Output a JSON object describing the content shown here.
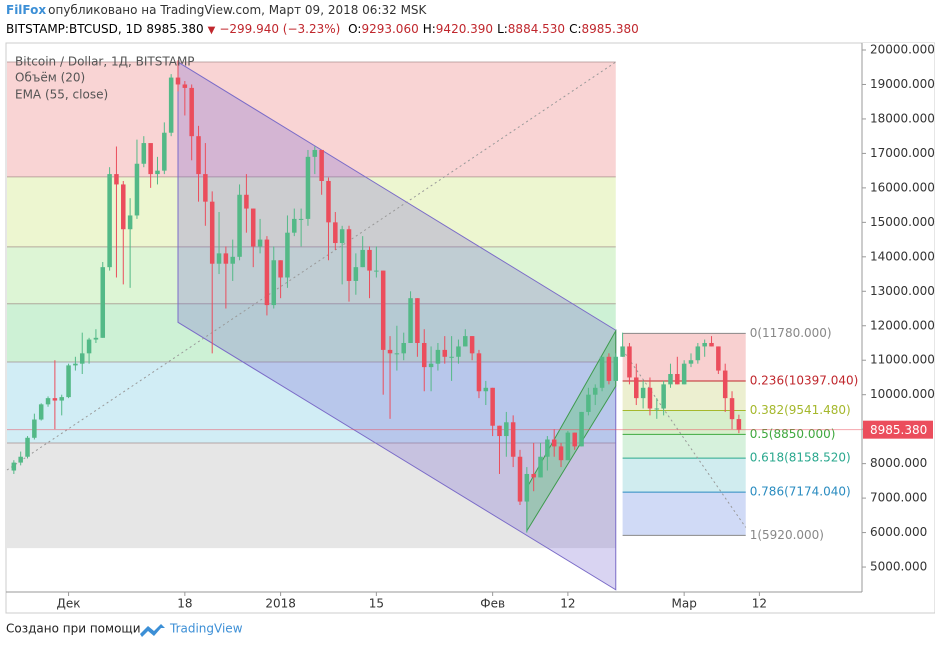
{
  "header": {
    "author": "FilFox",
    "published": "опубликовано на TradingView.com, Март 09, 2018 06:32 MSK",
    "symbol": "BITSTAMP:BTCUSD, 1D",
    "price": "8985.380",
    "change": "−299.940 (−3.23%)",
    "ohlc": [
      {
        "label": "O:",
        "value": "9293.060"
      },
      {
        "label": "H:",
        "value": "9420.390"
      },
      {
        "label": "L:",
        "value": "8884.530"
      },
      {
        "label": "C:",
        "value": "8985.380"
      }
    ]
  },
  "footer": {
    "text": "Создано при помощи",
    "brand": "TradingView"
  },
  "chart_data": {
    "type": "candlestick",
    "title": "Bitcoin / Dollar, 1Д, BITSTAMP",
    "indicators": [
      "Объём (20)",
      "EMA (55, close)"
    ],
    "up_color": "#53b987",
    "down_color": "#eb4d5c",
    "x": [
      "2017-11-23",
      "2017-11-24",
      "2017-11-25",
      "2017-11-26",
      "2017-11-27",
      "2017-11-28",
      "2017-11-29",
      "2017-11-30",
      "2017-12-01",
      "2017-12-02",
      "2017-12-03",
      "2017-12-04",
      "2017-12-05",
      "2017-12-06",
      "2017-12-07",
      "2017-12-08",
      "2017-12-09",
      "2017-12-10",
      "2017-12-11",
      "2017-12-12",
      "2017-12-13",
      "2017-12-14",
      "2017-12-15",
      "2017-12-16",
      "2017-12-17",
      "2017-12-18",
      "2017-12-19",
      "2017-12-20",
      "2017-12-21",
      "2017-12-22",
      "2017-12-23",
      "2017-12-24",
      "2017-12-25",
      "2017-12-26",
      "2017-12-27",
      "2017-12-28",
      "2017-12-29",
      "2017-12-30",
      "2017-12-31",
      "2018-01-01",
      "2018-01-02",
      "2018-01-03",
      "2018-01-04",
      "2018-01-05",
      "2018-01-06",
      "2018-01-07",
      "2018-01-08",
      "2018-01-09",
      "2018-01-10",
      "2018-01-11",
      "2018-01-12",
      "2018-01-13",
      "2018-01-14",
      "2018-01-15",
      "2018-01-16",
      "2018-01-17",
      "2018-01-18",
      "2018-01-19",
      "2018-01-20",
      "2018-01-21",
      "2018-01-22",
      "2018-01-23",
      "2018-01-24",
      "2018-01-25",
      "2018-01-26",
      "2018-01-27",
      "2018-01-28",
      "2018-01-29",
      "2018-01-30",
      "2018-01-31",
      "2018-02-01",
      "2018-02-02",
      "2018-02-03",
      "2018-02-04",
      "2018-02-05",
      "2018-02-06",
      "2018-02-07",
      "2018-02-08",
      "2018-02-09",
      "2018-02-10",
      "2018-02-11",
      "2018-02-12",
      "2018-02-13",
      "2018-02-14",
      "2018-02-15",
      "2018-02-16",
      "2018-02-17",
      "2018-02-18",
      "2018-02-19",
      "2018-02-20",
      "2018-02-21",
      "2018-02-22",
      "2018-02-23",
      "2018-02-24",
      "2018-02-25",
      "2018-02-26",
      "2018-02-27",
      "2018-02-28",
      "2018-03-01",
      "2018-03-02",
      "2018-03-03",
      "2018-03-04",
      "2018-03-05",
      "2018-03-06",
      "2018-03-07",
      "2018-03-08",
      "2018-03-09"
    ],
    "open": [
      7800,
      8030,
      8200,
      8750,
      9280,
      9720,
      9900,
      9830,
      9930,
      10850,
      10900,
      11200,
      11600,
      11650,
      13700,
      16400,
      16100,
      14800,
      15200,
      16700,
      17300,
      16400,
      16500,
      17600,
      19200,
      19000,
      18900,
      17500,
      16400,
      15600,
      13800,
      14100,
      13800,
      14000,
      15800,
      15400,
      14300,
      14500,
      12600,
      13900,
      13400,
      14700,
      15100,
      15100,
      16900,
      17100,
      16200,
      15000,
      14400,
      14800,
      13300,
      13700,
      14200,
      13600,
      13600,
      11300,
      11200,
      11200,
      11500,
      12800,
      11500,
      10800,
      10900,
      11300,
      11100,
      11100,
      11400,
      11700,
      11200,
      10100,
      10200,
      9100,
      8800,
      9200,
      8200,
      6900,
      7700,
      7600,
      8200,
      8700,
      8500,
      8100,
      8900,
      8500,
      9500,
      10000,
      10200,
      11100,
      10400,
      11100,
      11400,
      10500,
      9900,
      10200,
      9600,
      9600,
      10300,
      10600,
      10300,
      10900,
      11000,
      11400,
      11500,
      11400,
      10700,
      9900,
      9293.06
    ],
    "high": [
      8100,
      8350,
      8800,
      9450,
      9750,
      9950,
      11000,
      10000,
      10900,
      11100,
      11800,
      11650,
      11900,
      13850,
      16600,
      17200,
      16200,
      15700,
      17400,
      17500,
      17200,
      16900,
      17900,
      19300,
      19700,
      19100,
      19000,
      17800,
      17300,
      15900,
      15300,
      14300,
      14500,
      16100,
      16400,
      15400,
      15100,
      14600,
      14300,
      13900,
      15200,
      15400,
      15400,
      17100,
      17200,
      17100,
      16300,
      15300,
      14900,
      14900,
      14100,
      14600,
      14300,
      14300,
      13600,
      11700,
      12000,
      11800,
      13000,
      12800,
      11900,
      11400,
      11500,
      11700,
      11700,
      11600,
      11900,
      11700,
      11300,
      10400,
      10200,
      9100,
      9500,
      9400,
      8400,
      7900,
      8600,
      8600,
      8800,
      9000,
      8600,
      8950,
      8900,
      9500,
      10200,
      10300,
      11100,
      11200,
      11200,
      11800,
      11500,
      10900,
      10400,
      10500,
      9900,
      10400,
      10900,
      11100,
      11000,
      11200,
      11500,
      11600,
      11700,
      11400,
      10900,
      10100,
      9420.39
    ],
    "low": [
      7700,
      7950,
      8150,
      8700,
      9250,
      9650,
      9000,
      9400,
      9900,
      10700,
      10600,
      10900,
      11500,
      11650,
      13600,
      13400,
      13200,
      13100,
      15100,
      16600,
      16000,
      16100,
      16400,
      17500,
      18800,
      18100,
      16800,
      15600,
      14900,
      11200,
      13500,
      12500,
      13300,
      13900,
      14700,
      13700,
      14100,
      12300,
      12500,
      12800,
      13100,
      14600,
      14300,
      14900,
      16400,
      15800,
      13900,
      14200,
      13200,
      12700,
      12900,
      13700,
      12800,
      13400,
      10000,
      9300,
      10700,
      11000,
      11500,
      11100,
      10100,
      10100,
      10700,
      10900,
      10400,
      10900,
      11400,
      11000,
      9900,
      9700,
      8800,
      7700,
      8200,
      7900,
      6800,
      6000,
      7200,
      7600,
      7800,
      8200,
      7900,
      8100,
      8400,
      8500,
      9400,
      9700,
      10100,
      10300,
      10400,
      11100,
      10300,
      9700,
      9600,
      9400,
      9300,
      9400,
      10200,
      10300,
      10300,
      10800,
      10900,
      11100,
      11400,
      10600,
      9500,
      9000,
      8884.53
    ],
    "close": [
      8030,
      8200,
      8750,
      9280,
      9720,
      9900,
      9830,
      9930,
      10850,
      10900,
      11200,
      11600,
      11650,
      13700,
      16400,
      16100,
      14800,
      15200,
      16700,
      17300,
      16400,
      16500,
      17600,
      19200,
      19000,
      18900,
      17500,
      16400,
      15600,
      13800,
      14100,
      13800,
      14000,
      15800,
      15400,
      14300,
      14500,
      12600,
      13900,
      13400,
      14700,
      15100,
      15100,
      16900,
      17100,
      16200,
      15000,
      14400,
      14800,
      13300,
      13700,
      14200,
      13600,
      13600,
      11300,
      11200,
      11200,
      11500,
      12800,
      11500,
      10800,
      10900,
      11300,
      11100,
      11100,
      11400,
      11700,
      11200,
      10100,
      10200,
      9100,
      8800,
      9200,
      8200,
      6900,
      7700,
      7600,
      8200,
      8700,
      8500,
      8100,
      8900,
      8500,
      9500,
      10000,
      10200,
      11100,
      10400,
      11100,
      11400,
      10500,
      9900,
      10200,
      9600,
      9600,
      10300,
      10600,
      10300,
      10900,
      11000,
      11400,
      11500,
      11400,
      10700,
      9900,
      9290,
      8985.38
    ],
    "xlim": [
      "2017-11-22",
      "2018-03-27"
    ],
    "xticks": [
      {
        "value": "2017-12-01",
        "label": "Дек"
      },
      {
        "value": "2017-12-18",
        "label": "18"
      },
      {
        "value": "2018-01-01",
        "label": "2018"
      },
      {
        "value": "2018-01-15",
        "label": "15"
      },
      {
        "value": "2018-02-01",
        "label": "Фев"
      },
      {
        "value": "2018-02-12",
        "label": "12"
      },
      {
        "value": "2018-03-01",
        "label": "Мар"
      },
      {
        "value": "2018-03-12",
        "label": "12"
      }
    ],
    "ylim": [
      4276,
      20174
    ],
    "yticks": [
      {
        "value": 5000,
        "label": "5000.000"
      },
      {
        "value": 6000,
        "label": "6000.000"
      },
      {
        "value": 7000,
        "label": "7000.000"
      },
      {
        "value": 8000,
        "label": "8000.000"
      },
      {
        "value": 9000,
        "label": "9000.000"
      },
      {
        "value": 10000,
        "label": "10000.000"
      },
      {
        "value": 11000,
        "label": "11000.000"
      },
      {
        "value": 12000,
        "label": "12000.000"
      },
      {
        "value": 13000,
        "label": "13000.000"
      },
      {
        "value": 14000,
        "label": "14000.000"
      },
      {
        "value": 15000,
        "label": "15000.000"
      },
      {
        "value": 16000,
        "label": "16000.000"
      },
      {
        "value": 17000,
        "label": "17000.000"
      },
      {
        "value": 18000,
        "label": "18000.000"
      },
      {
        "value": 19000,
        "label": "19000.000"
      },
      {
        "value": 20000,
        "label": "20000.000"
      }
    ],
    "last_price": {
      "value": 8985.38,
      "label": "8985.380",
      "color": "#eb4d5c"
    },
    "zones": {
      "start": "2017-11-22",
      "end": "2018-02-19",
      "edges": [
        19650,
        16320,
        14290,
        12640,
        10950,
        8600,
        5550
      ],
      "colors": [
        "rgba(235,120,120,0.32)",
        "rgba(215,235,150,0.45)",
        "rgba(170,230,150,0.4)",
        "rgba(130,220,150,0.4)",
        "rgba(140,210,230,0.4)",
        "rgba(200,200,200,0.45)"
      ]
    },
    "channel": {
      "start": "2017-12-17",
      "end": "2018-02-19",
      "upper": [
        19650,
        11870
      ],
      "lower": [
        12100,
        4340
      ],
      "color": "rgba(120,100,210,0.28)"
    },
    "green_channel": {
      "start": "2018-02-06",
      "end": "2018-02-19",
      "upper": [
        7300,
        11850
      ],
      "lower": [
        6050,
        10250
      ],
      "color": "rgba(90,200,110,0.38)"
    },
    "trend_lines": [
      {
        "start": "2017-11-22",
        "end": "2018-02-19",
        "values": [
          7815,
          19650
        ]
      },
      {
        "start": "2018-02-20",
        "end": "2018-03-10",
        "values": [
          11300,
          6150
        ]
      }
    ],
    "fib": {
      "start": "2018-02-20",
      "end": "2018-03-10",
      "levels": [
        {
          "value": 11780,
          "label": "0(11780.000)",
          "color": "#888888"
        },
        {
          "value": 10397.04,
          "label": "0.236(10397.040)",
          "color": "#c0272d"
        },
        {
          "value": 9541.48,
          "label": "0.382(9541.480)",
          "color": "#a5b82c"
        },
        {
          "value": 8850,
          "label": "0.5(8850.000)",
          "color": "#3ea83e"
        },
        {
          "value": 8158.52,
          "label": "0.618(8158.520)",
          "color": "#2aa88e"
        },
        {
          "value": 7174.04,
          "label": "0.786(7174.040)",
          "color": "#2a8cc0"
        },
        {
          "value": 5920,
          "label": "1(5920.000)",
          "color": "#888888"
        }
      ]
    }
  }
}
